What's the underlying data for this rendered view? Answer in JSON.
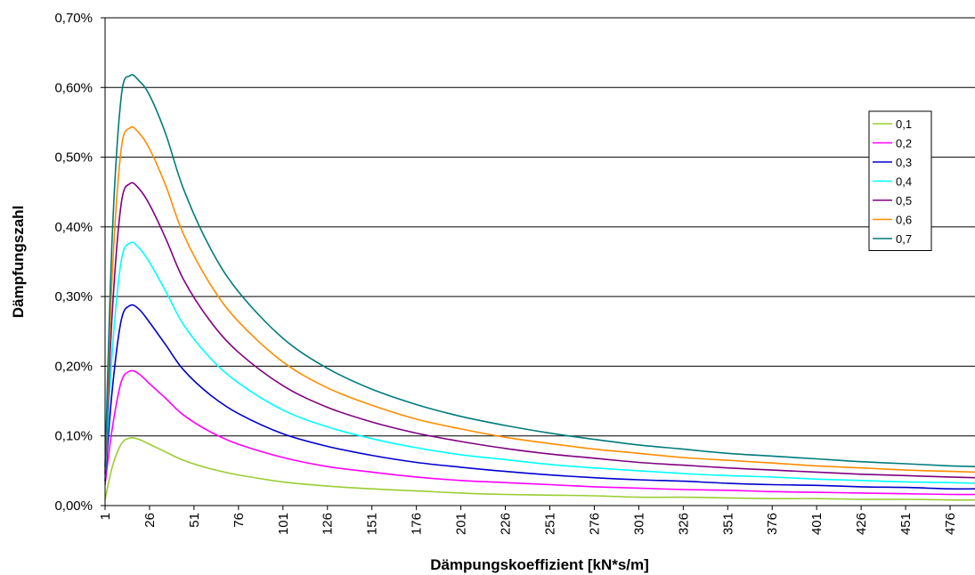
{
  "chart_data": {
    "type": "line",
    "title": "",
    "xlabel": "Dämpungskoeffizient [kN*s/m]",
    "ylabel": "Dämpfungszahl",
    "xlim": [
      1,
      490
    ],
    "ylim": [
      0,
      0.007
    ],
    "y_format": "percent, 2 decimals, comma decimal separator",
    "y_ticks": [
      "0,00%",
      "0,10%",
      "0,20%",
      "0,30%",
      "0,40%",
      "0,50%",
      "0,60%",
      "0,70%"
    ],
    "x_ticks": [
      "1",
      "26",
      "51",
      "76",
      "101",
      "126",
      "151",
      "176",
      "201",
      "226",
      "251",
      "276",
      "301",
      "326",
      "351",
      "376",
      "401",
      "426",
      "451",
      "476"
    ],
    "grid": "horizontal",
    "legend_position": "right",
    "x": [
      1,
      5,
      10,
      15,
      20,
      26,
      35,
      45,
      60,
      76,
      101,
      126,
      151,
      176,
      201,
      226,
      251,
      276,
      301,
      326,
      351,
      376,
      401,
      426,
      451,
      476,
      490
    ],
    "series": [
      {
        "name": "0,1",
        "color": "#9ACD32",
        "values": [
          8e-05,
          0.00055,
          0.00088,
          0.00097,
          0.00095,
          0.00088,
          0.00077,
          0.00065,
          0.00053,
          0.00044,
          0.00034,
          0.00028,
          0.00024,
          0.00021,
          0.00018,
          0.00016,
          0.00015,
          0.00014,
          0.00012,
          0.00012,
          0.00011,
          0.0001,
          0.0001,
          9e-05,
          9e-05,
          8e-05,
          8e-05
        ]
      },
      {
        "name": "0,2",
        "color": "#FF00FF",
        "values": [
          0.0003,
          0.0011,
          0.00177,
          0.00193,
          0.00189,
          0.00175,
          0.00154,
          0.0013,
          0.00106,
          0.00088,
          0.00069,
          0.00056,
          0.00048,
          0.00041,
          0.00036,
          0.00033,
          0.0003,
          0.00027,
          0.00025,
          0.00023,
          0.00022,
          0.0002,
          0.00019,
          0.00018,
          0.00017,
          0.00016,
          0.00016
        ]
      },
      {
        "name": "0,3",
        "color": "#0000CD",
        "values": [
          0.00035,
          0.00165,
          0.00265,
          0.00287,
          0.00282,
          0.00263,
          0.00231,
          0.00195,
          0.00159,
          0.00132,
          0.00103,
          0.00085,
          0.00072,
          0.00062,
          0.00055,
          0.00049,
          0.00044,
          0.0004,
          0.00037,
          0.00035,
          0.00032,
          0.0003,
          0.00029,
          0.00027,
          0.00026,
          0.00024,
          0.00024
        ]
      },
      {
        "name": "0,4",
        "color": "#00FFFF",
        "values": [
          0.0004,
          0.0022,
          0.0035,
          0.00377,
          0.0037,
          0.00349,
          0.00308,
          0.0026,
          0.00212,
          0.00176,
          0.00137,
          0.00113,
          0.00096,
          0.00083,
          0.00073,
          0.00066,
          0.00059,
          0.00054,
          0.0005,
          0.00046,
          0.00043,
          0.00041,
          0.00038,
          0.00036,
          0.00034,
          0.00033,
          0.00032
        ]
      },
      {
        "name": "0,5",
        "color": "#800080",
        "values": [
          0.00045,
          0.00275,
          0.00432,
          0.00462,
          0.00455,
          0.00432,
          0.00384,
          0.00325,
          0.00265,
          0.0022,
          0.00172,
          0.00141,
          0.0012,
          0.00104,
          0.00092,
          0.00082,
          0.00074,
          0.00068,
          0.00062,
          0.00058,
          0.00054,
          0.00051,
          0.00048,
          0.00045,
          0.00043,
          0.00041,
          0.0004
        ]
      },
      {
        "name": "0,6",
        "color": "#FF8C00",
        "values": [
          0.0005,
          0.0033,
          0.0051,
          0.00542,
          0.00535,
          0.00512,
          0.0046,
          0.0039,
          0.00318,
          0.00264,
          0.00206,
          0.00169,
          0.00144,
          0.00124,
          0.0011,
          0.00098,
          0.00089,
          0.00081,
          0.00075,
          0.00069,
          0.00065,
          0.00061,
          0.00057,
          0.00054,
          0.00051,
          0.00049,
          0.00048
        ]
      },
      {
        "name": "0,7",
        "color": "#007B7B",
        "values": [
          0.00055,
          0.00385,
          0.00585,
          0.00617,
          0.0061,
          0.00589,
          0.00534,
          0.00455,
          0.0037,
          0.00307,
          0.0024,
          0.00197,
          0.00167,
          0.00145,
          0.00128,
          0.00115,
          0.00104,
          0.00095,
          0.00087,
          0.00081,
          0.00075,
          0.00071,
          0.00067,
          0.00063,
          0.0006,
          0.00057,
          0.00056
        ]
      }
    ]
  }
}
